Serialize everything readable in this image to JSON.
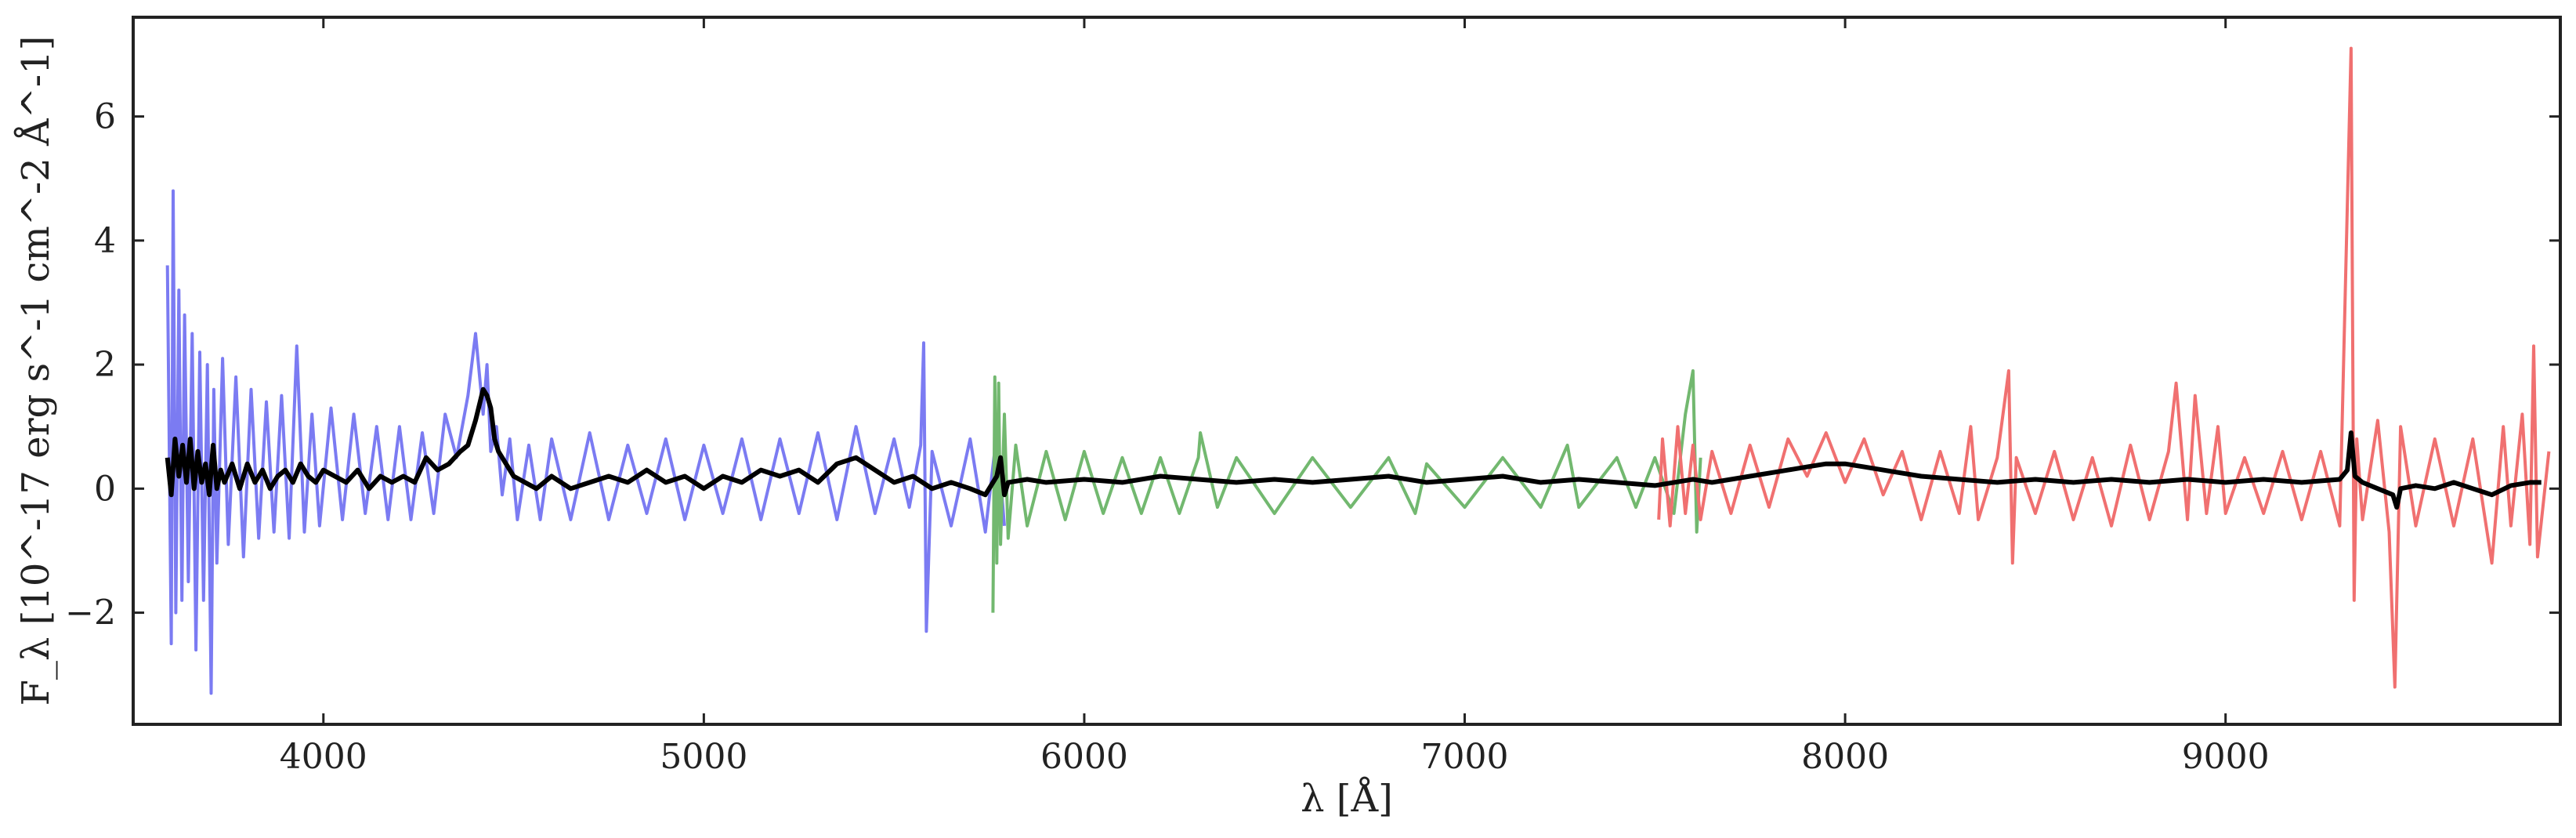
{
  "chart_data": {
    "type": "line",
    "title": "",
    "xlabel": "λ [Å]",
    "ylabel": "F_λ [10^-17 erg s^-1 cm^-2 Å^-1]",
    "xlim": [
      3500,
      9880
    ],
    "ylim": [
      -3.8,
      7.6
    ],
    "xticks": [
      4000,
      5000,
      6000,
      7000,
      8000,
      9000
    ],
    "yticks": [
      -2,
      0,
      2,
      4,
      6
    ],
    "grid": false,
    "legend": "none",
    "series": [
      {
        "color": "#7b7bf2",
        "x": [
          3590,
          3600,
          3605,
          3612,
          3620,
          3628,
          3635,
          3645,
          3655,
          3665,
          3675,
          3685,
          3695,
          3705,
          3712,
          3720,
          3735,
          3750,
          3770,
          3790,
          3810,
          3830,
          3850,
          3870,
          3890,
          3910,
          3930,
          3950,
          3970,
          3990,
          4020,
          4050,
          4080,
          4110,
          4140,
          4170,
          4200,
          4230,
          4260,
          4290,
          4320,
          4350,
          4380,
          4400,
          4420,
          4430,
          4440,
          4455,
          4470,
          4490,
          4510,
          4540,
          4570,
          4600,
          4650,
          4700,
          4750,
          4800,
          4850,
          4900,
          4950,
          5000,
          5050,
          5100,
          5150,
          5200,
          5250,
          5300,
          5350,
          5400,
          5450,
          5500,
          5540,
          5570,
          5578,
          5585,
          5600,
          5650,
          5700,
          5740,
          5770,
          5790
        ],
        "y": [
          3.6,
          -2.5,
          4.8,
          -2.0,
          3.2,
          -1.8,
          2.8,
          -1.5,
          2.5,
          -2.6,
          2.2,
          -1.8,
          2.0,
          -3.3,
          1.6,
          -1.2,
          2.1,
          -0.9,
          1.8,
          -1.1,
          1.6,
          -0.8,
          1.4,
          -0.7,
          1.5,
          -0.8,
          2.3,
          -0.7,
          1.2,
          -0.6,
          1.3,
          -0.5,
          1.2,
          -0.4,
          1.0,
          -0.5,
          1.0,
          -0.5,
          0.9,
          -0.4,
          1.2,
          0.5,
          1.5,
          2.5,
          1.2,
          2.0,
          0.6,
          1.0,
          -0.1,
          0.8,
          -0.5,
          0.7,
          -0.5,
          0.8,
          -0.5,
          0.9,
          -0.5,
          0.7,
          -0.4,
          0.8,
          -0.5,
          0.7,
          -0.4,
          0.8,
          -0.5,
          0.8,
          -0.4,
          0.9,
          -0.5,
          1.0,
          -0.4,
          0.8,
          -0.3,
          0.7,
          2.35,
          -2.3,
          0.6,
          -0.6,
          0.8,
          -0.7,
          0.9,
          -0.6
        ]
      },
      {
        "color": "#72b86f",
        "x": [
          5760,
          5765,
          5770,
          5775,
          5780,
          5790,
          5800,
          5820,
          5850,
          5900,
          5950,
          6000,
          6050,
          6100,
          6150,
          6200,
          6250,
          6300,
          6305,
          6350,
          6400,
          6500,
          6600,
          6700,
          6800,
          6870,
          6900,
          7000,
          7100,
          7200,
          7270,
          7300,
          7400,
          7450,
          7500,
          7550,
          7580,
          7600,
          7610,
          7620
        ],
        "y": [
          -2.0,
          1.8,
          -1.2,
          1.7,
          -0.9,
          1.2,
          -0.8,
          0.7,
          -0.6,
          0.6,
          -0.5,
          0.6,
          -0.4,
          0.5,
          -0.4,
          0.5,
          -0.4,
          0.5,
          0.9,
          -0.3,
          0.5,
          -0.4,
          0.5,
          -0.3,
          0.5,
          -0.4,
          0.4,
          -0.3,
          0.5,
          -0.3,
          0.7,
          -0.3,
          0.5,
          -0.3,
          0.5,
          -0.4,
          1.2,
          1.9,
          -0.7,
          0.5
        ]
      },
      {
        "color": "#f07070",
        "x": [
          7510,
          7520,
          7540,
          7560,
          7580,
          7600,
          7620,
          7650,
          7700,
          7750,
          7800,
          7850,
          7900,
          7950,
          8000,
          8050,
          8100,
          8150,
          8200,
          8250,
          8300,
          8330,
          8350,
          8400,
          8430,
          8440,
          8450,
          8500,
          8550,
          8600,
          8650,
          8700,
          8750,
          8800,
          8850,
          8870,
          8900,
          8920,
          8950,
          8980,
          9000,
          9050,
          9100,
          9150,
          9200,
          9250,
          9300,
          9330,
          9338,
          9345,
          9360,
          9400,
          9430,
          9445,
          9460,
          9500,
          9550,
          9600,
          9650,
          9700,
          9730,
          9750,
          9780,
          9800,
          9810,
          9820,
          9850
        ],
        "y": [
          -0.5,
          0.8,
          -0.6,
          1.0,
          -0.4,
          0.7,
          -0.5,
          0.6,
          -0.4,
          0.7,
          -0.3,
          0.8,
          0.2,
          0.9,
          0.1,
          0.8,
          -0.1,
          0.6,
          -0.5,
          0.6,
          -0.4,
          1.0,
          -0.5,
          0.5,
          1.9,
          -1.2,
          0.5,
          -0.4,
          0.6,
          -0.5,
          0.5,
          -0.6,
          0.7,
          -0.5,
          0.6,
          1.7,
          -0.5,
          1.5,
          -0.4,
          1.0,
          -0.4,
          0.5,
          -0.4,
          0.6,
          -0.5,
          0.6,
          -0.6,
          7.1,
          -1.8,
          0.8,
          -0.5,
          1.1,
          -0.7,
          -3.2,
          1.0,
          -0.6,
          0.8,
          -0.6,
          0.8,
          -1.2,
          1.0,
          -0.6,
          1.2,
          -0.9,
          2.3,
          -1.1,
          0.6
        ]
      },
      {
        "color": "#000000",
        "x": [
          3590,
          3600,
          3610,
          3620,
          3630,
          3640,
          3650,
          3660,
          3670,
          3680,
          3690,
          3700,
          3710,
          3720,
          3730,
          3740,
          3760,
          3780,
          3800,
          3820,
          3840,
          3860,
          3880,
          3900,
          3920,
          3940,
          3960,
          3980,
          4000,
          4030,
          4060,
          4090,
          4120,
          4150,
          4180,
          4210,
          4240,
          4270,
          4300,
          4330,
          4360,
          4380,
          4400,
          4420,
          4430,
          4440,
          4450,
          4460,
          4480,
          4500,
          4530,
          4560,
          4600,
          4650,
          4700,
          4750,
          4800,
          4850,
          4900,
          4950,
          5000,
          5050,
          5100,
          5150,
          5200,
          5250,
          5300,
          5350,
          5400,
          5450,
          5500,
          5550,
          5600,
          5650,
          5700,
          5740,
          5770,
          5780,
          5790,
          5800,
          5850,
          5900,
          6000,
          6100,
          6200,
          6300,
          6400,
          6500,
          6600,
          6700,
          6800,
          6900,
          7000,
          7100,
          7200,
          7300,
          7400,
          7500,
          7550,
          7600,
          7650,
          7700,
          7750,
          7800,
          7850,
          7900,
          7950,
          8000,
          8050,
          8100,
          8200,
          8300,
          8400,
          8500,
          8600,
          8700,
          8800,
          8900,
          9000,
          9100,
          9200,
          9300,
          9320,
          9330,
          9340,
          9360,
          9400,
          9440,
          9450,
          9460,
          9500,
          9550,
          9600,
          9650,
          9700,
          9750,
          9800,
          9830
        ],
        "y": [
          0.5,
          -0.1,
          0.8,
          0.2,
          0.7,
          0.1,
          0.8,
          0.0,
          0.6,
          0.1,
          0.4,
          -0.1,
          0.7,
          0.0,
          0.3,
          0.1,
          0.4,
          0.0,
          0.4,
          0.1,
          0.3,
          0.0,
          0.2,
          0.3,
          0.1,
          0.4,
          0.2,
          0.1,
          0.3,
          0.2,
          0.1,
          0.3,
          0.0,
          0.2,
          0.1,
          0.2,
          0.1,
          0.5,
          0.3,
          0.4,
          0.6,
          0.7,
          1.1,
          1.6,
          1.5,
          1.3,
          0.8,
          0.6,
          0.4,
          0.2,
          0.1,
          0.0,
          0.2,
          0.0,
          0.1,
          0.2,
          0.1,
          0.3,
          0.1,
          0.2,
          0.0,
          0.2,
          0.1,
          0.3,
          0.2,
          0.3,
          0.1,
          0.4,
          0.5,
          0.3,
          0.1,
          0.2,
          0.0,
          0.1,
          0.0,
          -0.1,
          0.2,
          0.5,
          -0.1,
          0.1,
          0.15,
          0.1,
          0.15,
          0.1,
          0.2,
          0.15,
          0.1,
          0.15,
          0.1,
          0.15,
          0.2,
          0.1,
          0.15,
          0.2,
          0.1,
          0.15,
          0.1,
          0.05,
          0.1,
          0.15,
          0.1,
          0.15,
          0.2,
          0.25,
          0.3,
          0.35,
          0.4,
          0.4,
          0.35,
          0.3,
          0.2,
          0.15,
          0.1,
          0.15,
          0.1,
          0.15,
          0.1,
          0.15,
          0.1,
          0.15,
          0.1,
          0.15,
          0.3,
          0.9,
          0.2,
          0.1,
          0.0,
          -0.1,
          -0.3,
          0.0,
          0.05,
          0.0,
          0.1,
          0.0,
          -0.1,
          0.05,
          0.1,
          0.1
        ]
      }
    ]
  }
}
